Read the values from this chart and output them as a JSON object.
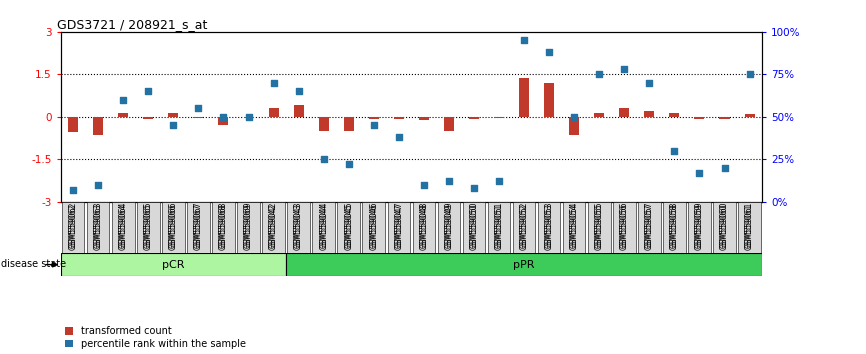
{
  "title": "GDS3721 / 208921_s_at",
  "samples": [
    "GSM559062",
    "GSM559063",
    "GSM559064",
    "GSM559065",
    "GSM559066",
    "GSM559067",
    "GSM559068",
    "GSM559069",
    "GSM559042",
    "GSM559043",
    "GSM559044",
    "GSM559045",
    "GSM559046",
    "GSM559047",
    "GSM559048",
    "GSM559049",
    "GSM559050",
    "GSM559051",
    "GSM559052",
    "GSM559053",
    "GSM559054",
    "GSM559055",
    "GSM559056",
    "GSM559057",
    "GSM559058",
    "GSM559059",
    "GSM559060",
    "GSM559061"
  ],
  "transformed_count": [
    -0.55,
    -0.65,
    0.12,
    -0.08,
    0.15,
    -0.04,
    -0.3,
    -0.04,
    0.3,
    0.42,
    -0.5,
    -0.5,
    -0.08,
    -0.06,
    -0.1,
    -0.5,
    -0.06,
    -0.04,
    1.38,
    1.18,
    -0.65,
    0.12,
    0.32,
    0.22,
    0.12,
    -0.08,
    -0.08,
    0.1
  ],
  "percentile_rank": [
    7,
    10,
    60,
    65,
    45,
    55,
    50,
    50,
    70,
    65,
    25,
    22,
    45,
    38,
    10,
    12,
    8,
    12,
    95,
    88,
    50,
    75,
    78,
    70,
    30,
    17,
    20,
    75
  ],
  "pCR_count": 9,
  "pPR_count": 19,
  "ylim_left": [
    -3,
    3
  ],
  "yticks_left": [
    -3,
    -1.5,
    0,
    1.5,
    3
  ],
  "yticks_right": [
    0,
    25,
    50,
    75,
    100
  ],
  "ytick_labels_left": [
    "-3",
    "-1.5",
    "0",
    "1.5",
    "3"
  ],
  "ytick_labels_right": [
    "0%",
    "25%",
    "50%",
    "75%",
    "100%"
  ],
  "bar_color": "#c0392b",
  "scatter_color": "#2471a3",
  "pCR_color": "#adf5a0",
  "pPR_color": "#3dcc5a",
  "label_bar": "transformed count",
  "label_scatter": "percentile rank within the sample"
}
